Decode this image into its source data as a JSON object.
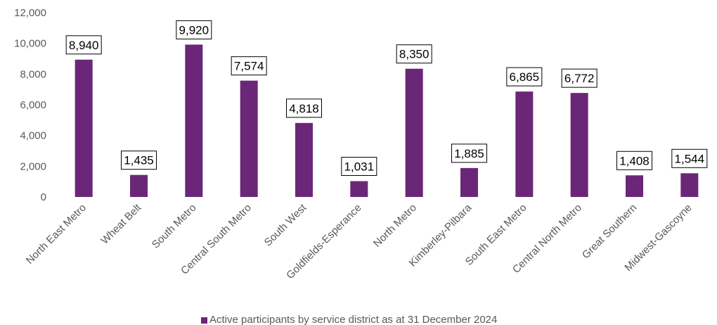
{
  "chart_data": {
    "type": "bar",
    "title": "",
    "xlabel": "",
    "ylabel": "",
    "ylim": [
      0,
      12000
    ],
    "yticks": [
      0,
      2000,
      4000,
      6000,
      8000,
      10000,
      12000
    ],
    "ytick_labels": [
      "0",
      "2,000",
      "4,000",
      "6,000",
      "8,000",
      "10,000",
      "12,000"
    ],
    "grid": false,
    "legend_position": "bottom",
    "bar_color": "#6b2777",
    "categories": [
      "North East Metro",
      "Wheat Belt",
      "South Metro",
      "Central South Metro",
      "South West",
      "Goldfields-Esperance",
      "North Metro",
      "Kimberley-Pilbara",
      "South East Metro",
      "Central North Metro",
      "Great Southern",
      "Midwest-Gascoyne"
    ],
    "series": [
      {
        "name": "Active participants by service district as at 31 December 2024",
        "values": [
          8940,
          1435,
          9920,
          7574,
          4818,
          1031,
          8350,
          1885,
          6865,
          6772,
          1408,
          1544
        ],
        "labels": [
          "8,940",
          "1,435",
          "9,920",
          "7,574",
          "4,818",
          "1,031",
          "8,350",
          "1,885",
          "6,865",
          "6,772",
          "1,408",
          "1,544"
        ]
      }
    ]
  }
}
